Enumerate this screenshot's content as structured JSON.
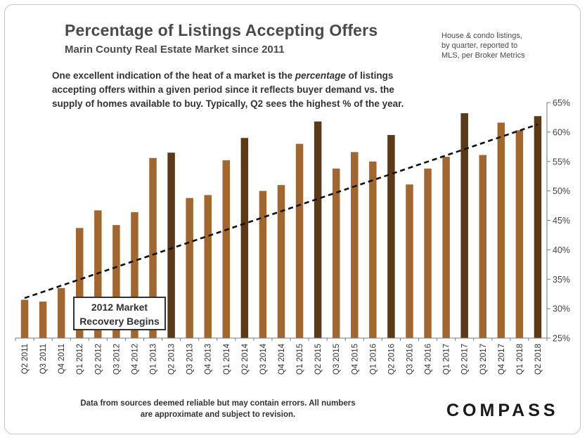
{
  "header": {
    "title": "Percentage of Listings Accepting Offers",
    "subtitle": "Marin County Real Estate Market since 2011",
    "source_lines": [
      "House & condo listings,",
      "by quarter, reported to",
      "MLS, per Broker Metrics"
    ]
  },
  "description": {
    "line1_before": "One excellent indication of the heat of a market is the ",
    "line1_italic": "percentage",
    "line1_after": " of listings",
    "line2": "accepting offers within a given period since it reflects buyer demand vs. the",
    "line3": "supply of homes available to buy. Typically,  Q2 sees the highest % of the year."
  },
  "annotation": {
    "line1": "2012 Market",
    "line2": "Recovery Begins"
  },
  "footer": {
    "line1": "Data from sources deemed reliable but may contain errors. All numbers",
    "line2": "are approximate and subject to revision.",
    "logo": "COMPASS"
  },
  "colors": {
    "bar_light": "#a2672f",
    "bar_dark": "#5c3a17",
    "trend": "#111111"
  },
  "chart_data": {
    "type": "bar",
    "categories": [
      "Q2 2011",
      "Q3 2011",
      "Q4 2011",
      "Q1 2012",
      "Q2 2012",
      "Q3 2012",
      "Q4 2012",
      "Q1 2013",
      "Q2 2013",
      "Q3 2013",
      "Q4 2013",
      "Q1 2014",
      "Q2 2014",
      "Q3 2014",
      "Q4 2014",
      "Q1 2015",
      "Q2 2015",
      "Q3 2015",
      "Q4 2015",
      "Q1 2016",
      "Q2 2016",
      "Q3 2016",
      "Q4 2016",
      "Q1 2017",
      "Q2 2017",
      "Q3 2017",
      "Q4 2017",
      "Q1 2018",
      "Q2 2018"
    ],
    "values": [
      31.5,
      31.2,
      33.5,
      43.7,
      46.7,
      44.2,
      46.4,
      55.6,
      56.5,
      48.8,
      49.3,
      55.2,
      59.0,
      50.0,
      51.0,
      58.0,
      61.8,
      53.8,
      56.6,
      55.0,
      59.5,
      51.1,
      53.8,
      55.8,
      63.2,
      56.1,
      61.6,
      60.3,
      62.7
    ],
    "dark_bars": [
      "Q2 2013",
      "Q2 2014",
      "Q2 2015",
      "Q2 2016",
      "Q2 2017",
      "Q2 2018"
    ],
    "trendline": {
      "style": "dashed",
      "start": {
        "x": "Q2 2011",
        "y": 31.8
      },
      "end": {
        "x": "Q2 2018",
        "y": 61.3
      }
    },
    "ylim": [
      25,
      65
    ],
    "yticks": [
      25,
      30,
      35,
      40,
      45,
      50,
      55,
      60,
      65
    ],
    "ytick_suffix": "%",
    "y_axis_side": "right",
    "title": "Percentage of Listings Accepting Offers"
  }
}
